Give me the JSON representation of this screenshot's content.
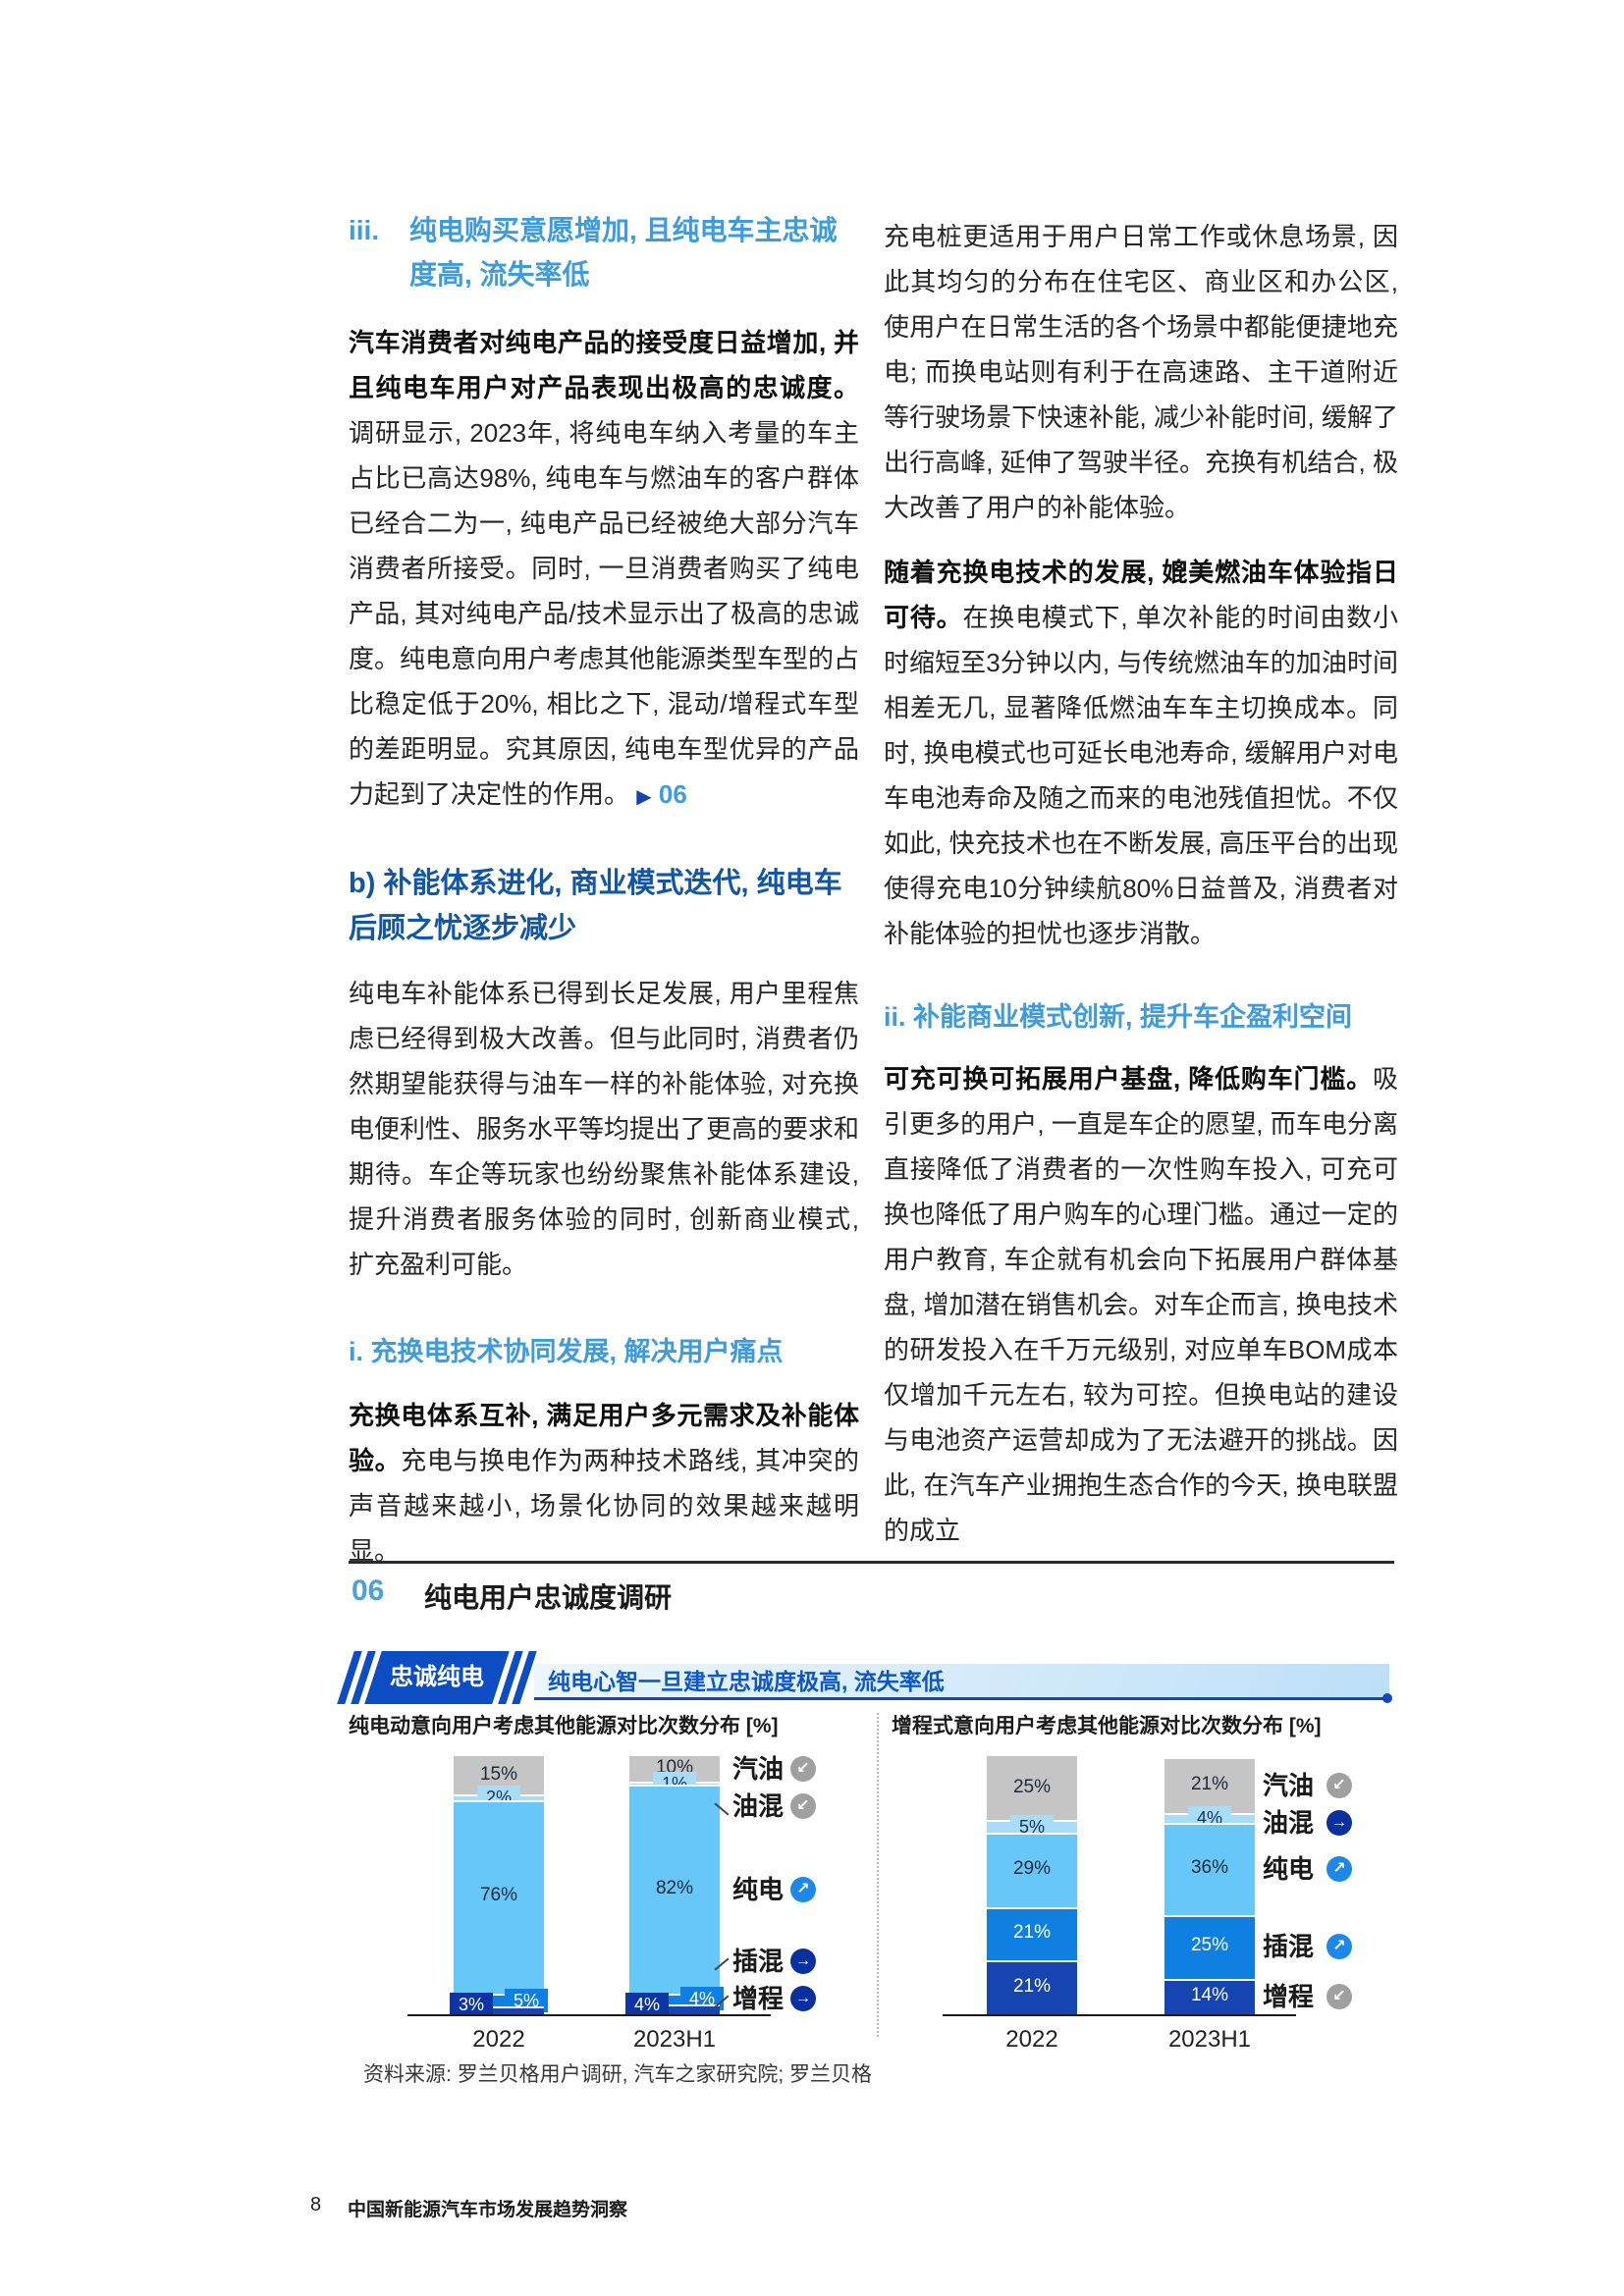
{
  "colors": {
    "gray": "#C5C5C5",
    "pale": "#A9DCF8",
    "sky": "#66C7F8",
    "mid": "#0F80E2",
    "navy": "#1644B0",
    "badge_navy": "#0D35A5",
    "trend_up": "#1E88EA",
    "trend_flat": "#0A2F9E",
    "trend_down": "#A0A0A0",
    "accent_blue": "#0C4DC4",
    "light_heading": "#3E9CDE",
    "dark_heading": "#1256A8"
  },
  "columns": {
    "left": {
      "h_iii_no": "iii.",
      "h_iii_text": "纯电购买意愿增加, 且纯电车主忠诚度高, 流失率低",
      "p1_bold": "汽车消费者对纯电产品的接受度日益增加, 并且纯电车用户对产品表现出极高的忠诚度。",
      "p1_rest": "调研显示, 2023年, 将纯电车纳入考量的车主占比已高达98%, 纯电车与燃油车的客户群体已经合二为一, 纯电产品已经被绝大部分汽车消费者所接受。同时, 一旦消费者购买了纯电产品, 其对纯电产品/技术显示出了极高的忠诚度。纯电意向用户考虑其他能源类型车型的占比稳定低于20%, 相比之下, 混动/增程式车型的差距明显。究其原因, 纯电车型优异的产品力起到了决定性的作用。",
      "p1_ref_arrow": "▶",
      "p1_ref": "06",
      "h_b": "b) 补能体系进化, 商业模式迭代, 纯电车后顾之忧逐步减少",
      "p2": "纯电车补能体系已得到长足发展, 用户里程焦虑已经得到极大改善。但与此同时, 消费者仍然期望能获得与油车一样的补能体验, 对充换电便利性、服务水平等均提出了更高的要求和期待。车企等玩家也纷纷聚焦补能体系建设, 提升消费者服务体验的同时, 创新商业模式, 扩充盈利可能。",
      "h_i": "i. 充换电技术协同发展, 解决用户痛点",
      "p3_bold": "充换电体系互补, 满足用户多元需求及补能体验。",
      "p3_rest": "充电与换电作为两种技术路线, 其冲突的声音越来越小, 场景化协同的效果越来越明显。"
    },
    "right": {
      "p1": "充电桩更适用于用户日常工作或休息场景, 因此其均匀的分布在住宅区、商业区和办公区, 使用户在日常生活的各个场景中都能便捷地充电; 而换电站则有利于在高速路、主干道附近等行驶场景下快速补能, 减少补能时间, 缓解了出行高峰, 延伸了驾驶半径。充换有机结合, 极大改善了用户的补能体验。",
      "p2_bold": "随着充换电技术的发展, 媲美燃油车体验指日可待。",
      "p2_rest": "在换电模式下, 单次补能的时间由数小时缩短至3分钟以内, 与传统燃油车的加油时间相差无几, 显著降低燃油车车主切换成本。同时, 换电模式也可延长电池寿命, 缓解用户对电车电池寿命及随之而来的电池残值担忧。不仅如此, 快充技术也在不断发展, 高压平台的出现使得充电10分钟续航80%日益普及, 消费者对补能体验的担忧也逐步消散。",
      "h_ii": "ii. 补能商业模式创新, 提升车企盈利空间",
      "p3_bold": "可充可换可拓展用户基盘, 降低购车门槛。",
      "p3_rest": "吸引更多的用户, 一直是车企的愿望, 而车电分离直接降低了消费者的一次性购车投入, 可充可换也降低了用户购车的心理门槛。通过一定的用户教育, 车企就有机会向下拓展用户群体基盘, 增加潜在销售机会。对车企而言, 换电技术的研发投入在千万元级别, 对应单车BOM成本仅增加千元左右, 较为可控。但换电站的建设与电池资产运营却成为了无法避开的挑战。因此, 在汽车产业拥抱生态合作的今天, 换电联盟的成立"
    }
  },
  "figure": {
    "number": "06",
    "title": "纯电用户忠诚度调研",
    "banner_tag": "忠诚纯电",
    "banner_text": "纯电心智一旦建立忠诚度极高, 流失率低",
    "source": "资料来源: 罗兰贝格用户调研, 汽车之家研究院; 罗兰贝格"
  },
  "footer": {
    "page_number": "8",
    "doc_title": "中国新能源汽车市场发展趋势洞察"
  },
  "chart_data": [
    {
      "type": "bar",
      "stacked": true,
      "title": "纯电动意向用户考虑其他能源对比次数分布 [%]",
      "categories": [
        "2022",
        "2023H1"
      ],
      "unit": "%",
      "ylim": [
        0,
        101
      ],
      "grid": false,
      "legend_position": "right",
      "series": [
        {
          "name": "汽油",
          "color": "gray",
          "values": [
            15,
            10
          ],
          "labels": [
            "15%",
            "10%"
          ],
          "label_style": [
            "inside-dark",
            "inside-dark"
          ]
        },
        {
          "name": "油混",
          "color": "pale",
          "values": [
            2,
            1
          ],
          "labels": [
            "2%",
            "1%"
          ],
          "label_style": [
            "badge-center",
            "badge-center"
          ]
        },
        {
          "name": "纯电",
          "color": "sky",
          "values": [
            76,
            82
          ],
          "labels": [
            "76%",
            "82%"
          ],
          "label_style": [
            "inside-dark",
            "inside-dark"
          ]
        },
        {
          "name": "插混",
          "color": "mid",
          "values": [
            5,
            4
          ],
          "labels": [
            "5%",
            "4%"
          ],
          "label_style": [
            "badge-right",
            "badge-right"
          ]
        },
        {
          "name": "增程",
          "color": "navy",
          "values": [
            3,
            4
          ],
          "labels": [
            "3%",
            "4%"
          ],
          "label_style": [
            "badge-left",
            "badge-left"
          ]
        }
      ],
      "legend": [
        {
          "label": "汽油",
          "trend": "down",
          "connector": ""
        },
        {
          "label": "油混",
          "trend": "down",
          "connector": "back"
        },
        {
          "label": "纯电",
          "trend": "up",
          "connector": ""
        },
        {
          "label": "插混",
          "trend": "flat",
          "connector": "fwd"
        },
        {
          "label": "增程",
          "trend": "flat",
          "connector": "fwd"
        }
      ]
    },
    {
      "type": "bar",
      "stacked": true,
      "title": "增程式意向用户考虑其他能源对比次数分布 [%]",
      "categories": [
        "2022",
        "2023H1"
      ],
      "unit": "%",
      "ylim": [
        0,
        101
      ],
      "grid": false,
      "legend_position": "right",
      "series": [
        {
          "name": "汽油",
          "color": "gray",
          "values": [
            25,
            21
          ],
          "labels": [
            "25%",
            "21%"
          ],
          "label_style": [
            "inside-dark",
            "inside-dark"
          ]
        },
        {
          "name": "油混",
          "color": "pale",
          "values": [
            5,
            4
          ],
          "labels": [
            "5%",
            "4%"
          ],
          "label_style": [
            "badge-center",
            "badge-center"
          ]
        },
        {
          "name": "纯电",
          "color": "sky",
          "values": [
            29,
            36
          ],
          "labels": [
            "29%",
            "36%"
          ],
          "label_style": [
            "inside-dark",
            "inside-dark"
          ]
        },
        {
          "name": "插混",
          "color": "mid",
          "values": [
            21,
            25
          ],
          "labels": [
            "21%",
            "25%"
          ],
          "label_style": [
            "inside-white",
            "inside-white"
          ]
        },
        {
          "name": "增程",
          "color": "navy",
          "values": [
            21,
            14
          ],
          "labels": [
            "21%",
            "14%"
          ],
          "label_style": [
            "inside-white",
            "inside-white"
          ]
        }
      ],
      "legend": [
        {
          "label": "汽油",
          "trend": "down",
          "connector": ""
        },
        {
          "label": "油混",
          "trend": "flat",
          "connector": ""
        },
        {
          "label": "纯电",
          "trend": "up",
          "connector": ""
        },
        {
          "label": "插混",
          "trend": "up",
          "connector": ""
        },
        {
          "label": "增程",
          "trend": "down",
          "connector": ""
        }
      ]
    }
  ]
}
